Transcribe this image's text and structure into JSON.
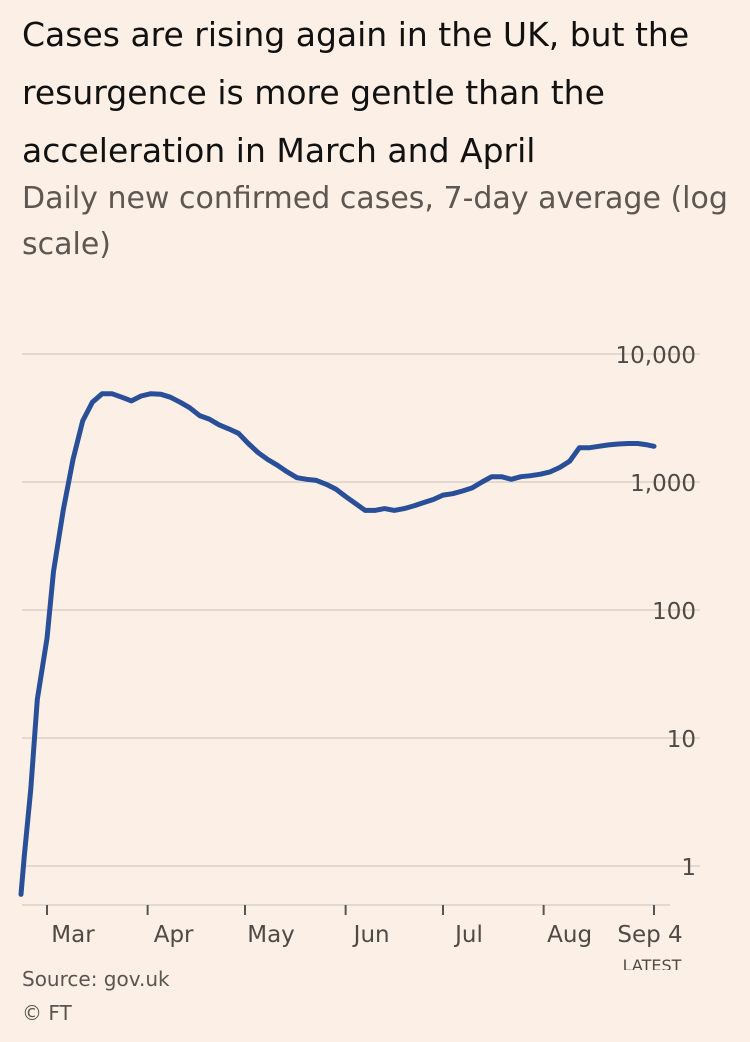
{
  "header": {
    "title": "Cases are rising again in the UK, but the resurgence is more gentle than the acceleration in March and April",
    "subtitle": "Daily new confirmed cases, 7-day average (log scale)"
  },
  "footer": {
    "source": "Source: gov.uk",
    "copyright": "© FT"
  },
  "chart_data": {
    "type": "line",
    "title": "Cases are rising again in the UK, but the resurgence is more gentle than the acceleration in March and April",
    "subtitle": "Daily new confirmed cases, 7-day average (log scale)",
    "y_scale": "log",
    "ylim": [
      1,
      10000
    ],
    "y_ticks": [
      1,
      10,
      100,
      1000,
      10000
    ],
    "y_tick_labels": [
      "1",
      "10",
      "100",
      "1,000",
      "10,000"
    ],
    "x_ticks": [
      "2020-03-01",
      "2020-04-01",
      "2020-05-01",
      "2020-06-01",
      "2020-07-01",
      "2020-08-01",
      "2020-09-04"
    ],
    "x_tick_labels": [
      "Mar",
      "Apr",
      "May",
      "Jun",
      "Jul",
      "Aug",
      "Sep 4"
    ],
    "annotation": "LATEST DATA",
    "grid": true,
    "line_color": "#2a4f99",
    "grid_color": "#e4d9cf",
    "series": [
      {
        "x": [
          "2020-02-22",
          "2020-02-23",
          "2020-02-25",
          "2020-02-27",
          "2020-03-01",
          "2020-03-03",
          "2020-03-06",
          "2020-03-09",
          "2020-03-12",
          "2020-03-15",
          "2020-03-18",
          "2020-03-21",
          "2020-03-24",
          "2020-03-27",
          "2020-03-30",
          "2020-04-02",
          "2020-04-05",
          "2020-04-08",
          "2020-04-11",
          "2020-04-14",
          "2020-04-17",
          "2020-04-20",
          "2020-04-23",
          "2020-04-26",
          "2020-04-29",
          "2020-05-02",
          "2020-05-05",
          "2020-05-08",
          "2020-05-11",
          "2020-05-14",
          "2020-05-17",
          "2020-05-20",
          "2020-05-23",
          "2020-05-26",
          "2020-05-29",
          "2020-06-01",
          "2020-06-04",
          "2020-06-07",
          "2020-06-10",
          "2020-06-13",
          "2020-06-16",
          "2020-06-19",
          "2020-06-22",
          "2020-06-25",
          "2020-06-28",
          "2020-07-01",
          "2020-07-04",
          "2020-07-07",
          "2020-07-10",
          "2020-07-13",
          "2020-07-16",
          "2020-07-19",
          "2020-07-22",
          "2020-07-25",
          "2020-07-28",
          "2020-07-31",
          "2020-08-03",
          "2020-08-06",
          "2020-08-09",
          "2020-08-12",
          "2020-08-15",
          "2020-08-18",
          "2020-08-21",
          "2020-08-24",
          "2020-08-27",
          "2020-08-30",
          "2020-09-02",
          "2020-09-04"
        ],
        "values": [
          0.6,
          1.2,
          4,
          20,
          60,
          200,
          600,
          1500,
          3000,
          4200,
          4900,
          4900,
          4600,
          4300,
          4700,
          4900,
          4850,
          4600,
          4200,
          3800,
          3300,
          3100,
          2800,
          2600,
          2400,
          2000,
          1700,
          1500,
          1350,
          1200,
          1080,
          1050,
          1030,
          960,
          880,
          770,
          680,
          600,
          600,
          620,
          600,
          620,
          650,
          690,
          730,
          790,
          810,
          850,
          900,
          1000,
          1100,
          1100,
          1050,
          1100,
          1120,
          1150,
          1200,
          1300,
          1450,
          1850,
          1850,
          1900,
          1950,
          1980,
          2000,
          2000,
          1950,
          1900
        ]
      }
    ]
  }
}
